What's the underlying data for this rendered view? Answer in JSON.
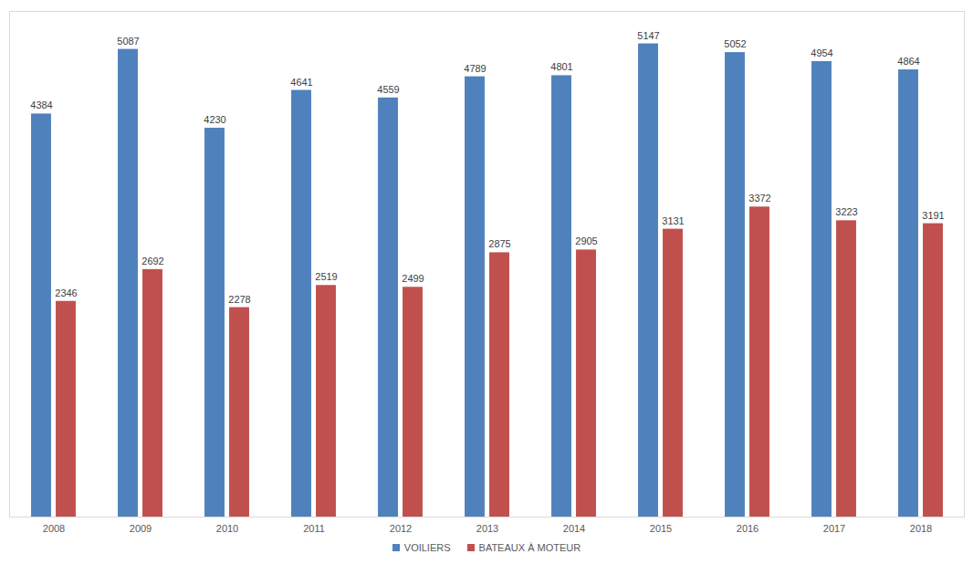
{
  "chart_data": {
    "type": "bar",
    "categories": [
      "2008",
      "2009",
      "2010",
      "2011",
      "2012",
      "2013",
      "2014",
      "2015",
      "2016",
      "2017",
      "2018"
    ],
    "series": [
      {
        "name": "VOILIERS",
        "color": "#4f81bd",
        "values": [
          4384,
          5087,
          4230,
          4641,
          4559,
          4789,
          4801,
          5147,
          5052,
          4954,
          4864
        ]
      },
      {
        "name": "BATEAUX À MOTEUR",
        "color": "#c0504d",
        "values": [
          2346,
          2692,
          2278,
          2519,
          2499,
          2875,
          2905,
          3131,
          3372,
          3223,
          3191
        ]
      }
    ],
    "ylim": [
      0,
      5500
    ],
    "yticks": [],
    "grid": false,
    "legend": "bottom",
    "data_labels": true,
    "tick_labels": "x"
  }
}
